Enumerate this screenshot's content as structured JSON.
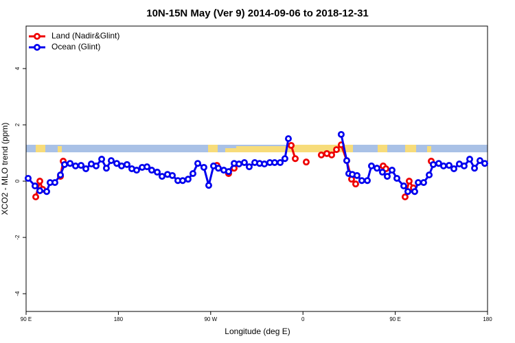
{
  "chart_data": {
    "type": "line",
    "title": "10N-15N May (Ver 9)   2014-09-06 to 2018-12-31",
    "x_label": "Longitude (deg E)",
    "y_label": "XCO2 - MLO trend (ppm)",
    "xlim": [
      90,
      540
    ],
    "xticks": [
      {
        "value": 90,
        "label": "90 E"
      },
      {
        "value": 180,
        "label": "180"
      },
      {
        "value": 270,
        "label": "90 W"
      },
      {
        "value": 360,
        "label": "0"
      },
      {
        "value": 450,
        "label": "90 E"
      },
      {
        "value": 540,
        "label": "180"
      }
    ],
    "ylim": [
      -4.63,
      5.51
    ],
    "yticks": [
      -4,
      -2,
      0,
      2,
      4
    ],
    "legend": "top-left",
    "series": [
      {
        "name": "Land (Nadir&Glint)",
        "color": "#ee0000",
        "x": [
          99.4,
          103.4,
          106.1,
          null,
          123.5,
          126.2,
          null,
          276.1,
          null,
          287.5,
          292.9,
          null,
          348.5,
          352.5,
          null,
          363.2,
          null,
          377.9,
          383.3,
          388.0,
          392.7,
          397.3,
          402.7,
          407.4,
          411.4,
          null,
          438.2,
          440.9,
          null,
          459.6,
          463.6,
          467.7,
          null,
          485.1
        ],
        "values": [
          -0.56,
          0.0,
          -0.29,
          null,
          0.17,
          0.71,
          null,
          0.56,
          null,
          0.27,
          0.46,
          null,
          1.27,
          0.8,
          null,
          0.68,
          null,
          0.93,
          0.98,
          0.93,
          1.12,
          1.29,
          0.73,
          0.07,
          -0.1,
          null,
          0.54,
          0.44,
          null,
          -0.56,
          0.0,
          -0.24,
          null,
          0.71
        ]
      },
      {
        "name": "Ocean (Glint)",
        "color": "#0000ee",
        "x": [
          92.0,
          98.7,
          103.4,
          110.1,
          113.4,
          118.1,
          123.5,
          127.5,
          132.9,
          138.2,
          143.6,
          148.3,
          153.6,
          158.3,
          163.7,
          168.3,
          173.0,
          178.4,
          183.1,
          188.4,
          193.1,
          197.8,
          203.2,
          207.9,
          212.5,
          217.9,
          222.6,
          227.9,
          232.6,
          238.0,
          242.7,
          248.0,
          252.7,
          257.4,
          263.4,
          268.1,
          272.8,
          277.5,
          282.8,
          287.5,
          292.9,
          297.6,
          302.9,
          307.6,
          313.0,
          317.7,
          322.4,
          327.7,
          332.4,
          337.8,
          342.4,
          345.8,
          null,
          397.3,
          402.7,
          404.7,
          408.1,
          412.7,
          417.4,
          422.8,
          426.8,
          432.2,
          437.5,
          442.2,
          446.9,
          451.6,
          458.3,
          462.3,
          469.0,
          472.4,
          477.7,
          483.1,
          487.1,
          492.4,
          497.1,
          502.5,
          507.2,
          512.5,
          517.2,
          522.6,
          527.3,
          532.6,
          537.3
        ],
        "values": [
          0.1,
          -0.17,
          -0.34,
          -0.37,
          -0.05,
          -0.05,
          0.22,
          0.59,
          0.63,
          0.54,
          0.56,
          0.44,
          0.61,
          0.54,
          0.78,
          0.46,
          0.73,
          0.63,
          0.54,
          0.59,
          0.44,
          0.39,
          0.49,
          0.51,
          0.39,
          0.32,
          0.17,
          0.24,
          0.2,
          0.02,
          0.02,
          0.07,
          0.27,
          0.63,
          0.49,
          -0.15,
          0.54,
          0.46,
          0.39,
          0.34,
          0.63,
          0.61,
          0.66,
          0.51,
          0.66,
          0.63,
          0.61,
          0.66,
          0.66,
          0.66,
          0.8,
          1.51,
          null,
          1.66,
          0.73,
          0.27,
          0.24,
          0.2,
          0.02,
          0.02,
          0.54,
          0.46,
          0.32,
          0.17,
          0.39,
          0.1,
          -0.17,
          -0.37,
          -0.37,
          -0.05,
          -0.05,
          0.22,
          0.59,
          0.63,
          0.54,
          0.56,
          0.44,
          0.61,
          0.54,
          0.78,
          0.46,
          0.73,
          0.63
        ]
      }
    ]
  }
}
